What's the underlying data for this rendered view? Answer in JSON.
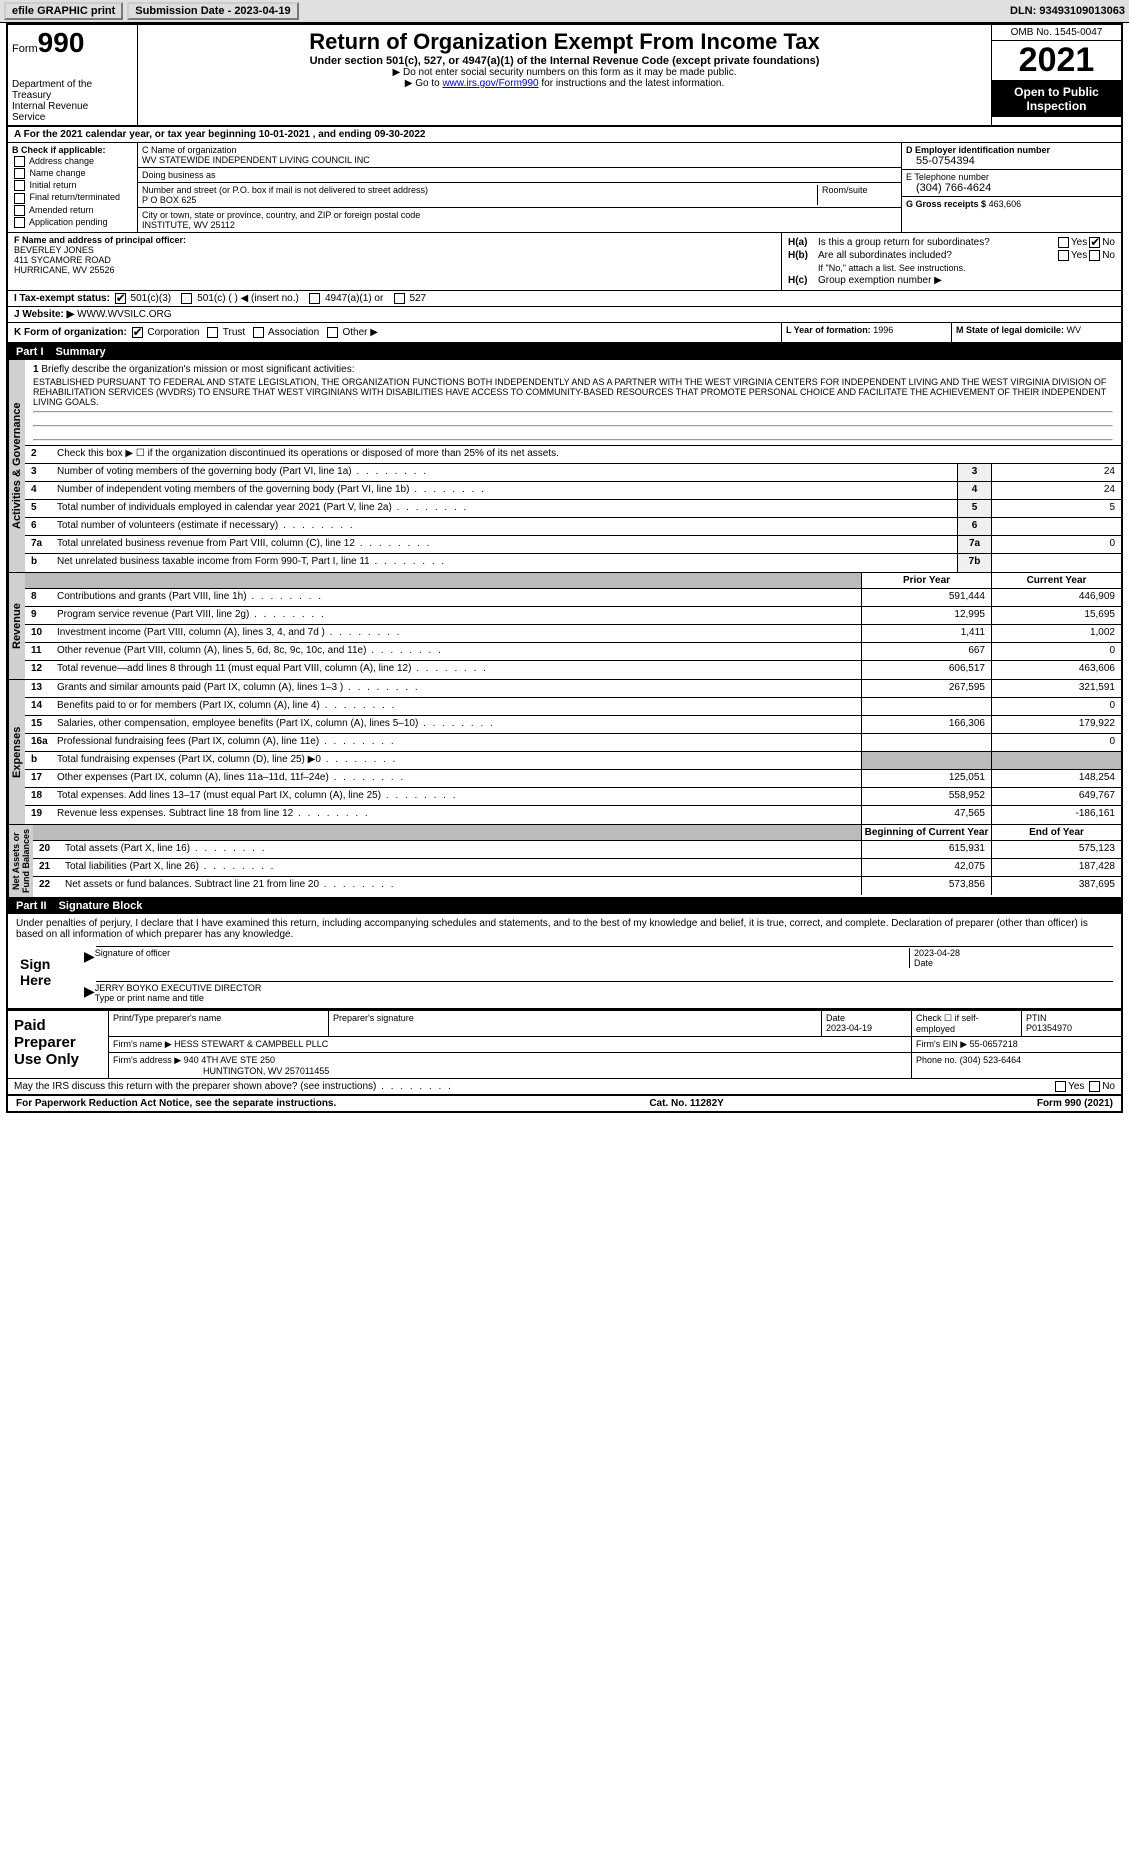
{
  "topbar": {
    "efile": "efile GRAPHIC print",
    "submission_label": "Submission Date - 2023-04-19",
    "dln_label": "DLN: 93493109013063"
  },
  "header": {
    "form_prefix": "Form",
    "form_number": "990",
    "title": "Return of Organization Exempt From Income Tax",
    "subtitle": "Under section 501(c), 527, or 4947(a)(1) of the Internal Revenue Code (except private foundations)",
    "note1": "▶ Do not enter social security numbers on this form as it may be made public.",
    "note2_prefix": "▶ Go to ",
    "note2_link": "www.irs.gov/Form990",
    "note2_suffix": " for instructions and the latest information.",
    "dept": "Department of the\nTreasury\nInternal Revenue\nService",
    "omb": "OMB No. 1545-0047",
    "year": "2021",
    "open": "Open to Public\nInspection"
  },
  "row_a": "A For the 2021 calendar year, or tax year beginning 10-01-2021     , and ending 09-30-2022",
  "section_b": {
    "label": "B Check if applicable:",
    "items": [
      "Address change",
      "Name change",
      "Initial return",
      "Final return/terminated",
      "Amended return",
      "Application pending"
    ]
  },
  "section_c": {
    "name_label": "C Name of organization",
    "name": "WV STATEWIDE INDEPENDENT LIVING COUNCIL INC",
    "dba_label": "Doing business as",
    "dba": "",
    "addr_label": "Number and street (or P.O. box if mail is not delivered to street address)",
    "room_label": "Room/suite",
    "addr": "P O BOX 625",
    "city_label": "City or town, state or province, country, and ZIP or foreign postal code",
    "city": "INSTITUTE, WV  25112"
  },
  "section_d": {
    "ein_label": "D Employer identification number",
    "ein": "55-0754394",
    "phone_label": "E Telephone number",
    "phone": "(304) 766-4624",
    "gross_label": "G Gross receipts $",
    "gross": "463,606"
  },
  "section_f": {
    "label": "F  Name and address of principal officer:",
    "name": "BEVERLEY JONES",
    "addr1": "411 SYCAMORE ROAD",
    "addr2": "HURRICANE, WV  25526"
  },
  "section_h": {
    "ha_label": "H(a)",
    "ha_text": "Is this a group return for subordinates?",
    "hb_label": "H(b)",
    "hb_text": "Are all subordinates included?",
    "hb_note": "If \"No,\" attach a list. See instructions.",
    "hc_label": "H(c)",
    "hc_text": "Group exemption number ▶",
    "yes": "Yes",
    "no": "No"
  },
  "row_i": {
    "label": "I  Tax-exempt status:",
    "opts": [
      "501(c)(3)",
      "501(c) (   ) ◀ (insert no.)",
      "4947(a)(1) or",
      "527"
    ]
  },
  "row_j": {
    "label": "J  Website: ▶",
    "val": "WWW.WVSILC.ORG"
  },
  "row_k": {
    "label": "K Form of organization:",
    "opts": [
      "Corporation",
      "Trust",
      "Association",
      "Other ▶"
    ],
    "l_label": "L Year of formation:",
    "l_val": "1996",
    "m_label": "M State of legal domicile:",
    "m_val": "WV"
  },
  "part1": {
    "num": "Part I",
    "title": "Summary"
  },
  "mission": {
    "num": "1",
    "label": "Briefly describe the organization's mission or most significant activities:",
    "text": "ESTABLISHED PURSUANT TO FEDERAL AND STATE LEGISLATION, THE ORGANIZATION FUNCTIONS BOTH INDEPENDENTLY AND AS A PARTNER WITH THE WEST VIRGINIA CENTERS FOR INDEPENDENT LIVING AND THE WEST VIRGINIA DIVISION OF REHABILITATION SERVICES (WVDRS) TO ENSURE THAT WEST VIRGINIANS WITH DISABILITIES HAVE ACCESS TO COMMUNITY-BASED RESOURCES THAT PROMOTE PERSONAL CHOICE AND FACILITATE THE ACHIEVEMENT OF THEIR INDEPENDENT LIVING GOALS."
  },
  "lines_gov": [
    {
      "num": "2",
      "desc": "Check this box ▶ ☐  if the organization discontinued its operations or disposed of more than 25% of its net assets.",
      "box": "",
      "val": ""
    },
    {
      "num": "3",
      "desc": "Number of voting members of the governing body (Part VI, line 1a)",
      "box": "3",
      "val": "24"
    },
    {
      "num": "4",
      "desc": "Number of independent voting members of the governing body (Part VI, line 1b)",
      "box": "4",
      "val": "24"
    },
    {
      "num": "5",
      "desc": "Total number of individuals employed in calendar year 2021 (Part V, line 2a)",
      "box": "5",
      "val": "5"
    },
    {
      "num": "6",
      "desc": "Total number of volunteers (estimate if necessary)",
      "box": "6",
      "val": ""
    },
    {
      "num": "7a",
      "desc": "Total unrelated business revenue from Part VIII, column (C), line 12",
      "box": "7a",
      "val": "0"
    },
    {
      "num": "b",
      "desc": "Net unrelated business taxable income from Form 990-T, Part I, line 11",
      "box": "7b",
      "val": ""
    }
  ],
  "col_headers": {
    "prior": "Prior Year",
    "current": "Current Year",
    "boy": "Beginning of Current Year",
    "eoy": "End of Year"
  },
  "lines_rev": [
    {
      "num": "8",
      "desc": "Contributions and grants (Part VIII, line 1h)",
      "prior": "591,444",
      "current": "446,909"
    },
    {
      "num": "9",
      "desc": "Program service revenue (Part VIII, line 2g)",
      "prior": "12,995",
      "current": "15,695"
    },
    {
      "num": "10",
      "desc": "Investment income (Part VIII, column (A), lines 3, 4, and 7d )",
      "prior": "1,411",
      "current": "1,002"
    },
    {
      "num": "11",
      "desc": "Other revenue (Part VIII, column (A), lines 5, 6d, 8c, 9c, 10c, and 11e)",
      "prior": "667",
      "current": "0"
    },
    {
      "num": "12",
      "desc": "Total revenue—add lines 8 through 11 (must equal Part VIII, column (A), line 12)",
      "prior": "606,517",
      "current": "463,606"
    }
  ],
  "lines_exp": [
    {
      "num": "13",
      "desc": "Grants and similar amounts paid (Part IX, column (A), lines 1–3 )",
      "prior": "267,595",
      "current": "321,591"
    },
    {
      "num": "14",
      "desc": "Benefits paid to or for members (Part IX, column (A), line 4)",
      "prior": "",
      "current": "0"
    },
    {
      "num": "15",
      "desc": "Salaries, other compensation, employee benefits (Part IX, column (A), lines 5–10)",
      "prior": "166,306",
      "current": "179,922"
    },
    {
      "num": "16a",
      "desc": "Professional fundraising fees (Part IX, column (A), line 11e)",
      "prior": "",
      "current": "0"
    },
    {
      "num": "b",
      "desc": "Total fundraising expenses (Part IX, column (D), line 25) ▶0",
      "prior": "shaded",
      "current": "shaded"
    },
    {
      "num": "17",
      "desc": "Other expenses (Part IX, column (A), lines 11a–11d, 11f–24e)",
      "prior": "125,051",
      "current": "148,254"
    },
    {
      "num": "18",
      "desc": "Total expenses. Add lines 13–17 (must equal Part IX, column (A), line 25)",
      "prior": "558,952",
      "current": "649,767"
    },
    {
      "num": "19",
      "desc": "Revenue less expenses. Subtract line 18 from line 12",
      "prior": "47,565",
      "current": "-186,161"
    }
  ],
  "lines_net": [
    {
      "num": "20",
      "desc": "Total assets (Part X, line 16)",
      "prior": "615,931",
      "current": "575,123"
    },
    {
      "num": "21",
      "desc": "Total liabilities (Part X, line 26)",
      "prior": "42,075",
      "current": "187,428"
    },
    {
      "num": "22",
      "desc": "Net assets or fund balances. Subtract line 21 from line 20",
      "prior": "573,856",
      "current": "387,695"
    }
  ],
  "vert": {
    "gov": "Activities & Governance",
    "rev": "Revenue",
    "exp": "Expenses",
    "net": "Net Assets or\nFund Balances"
  },
  "part2": {
    "num": "Part II",
    "title": "Signature Block"
  },
  "sig": {
    "perjury": "Under penalties of perjury, I declare that I have examined this return, including accompanying schedules and statements, and to the best of my knowledge and belief, it is true, correct, and complete. Declaration of preparer (other than officer) is based on all information of which preparer has any knowledge.",
    "sign_here": "Sign Here",
    "sig_officer": "Signature of officer",
    "date": "Date",
    "date_val": "2023-04-28",
    "name_title": "JERRY BOYKO  EXECUTIVE DIRECTOR",
    "type_label": "Type or print name and title"
  },
  "preparer": {
    "label": "Paid Preparer Use Only",
    "print_label": "Print/Type preparer's name",
    "sig_label": "Preparer's signature",
    "date_label": "Date",
    "date_val": "2023-04-19",
    "check_label": "Check ☐ if self-employed",
    "ptin_label": "PTIN",
    "ptin": "P01354970",
    "firm_name_label": "Firm's name    ▶",
    "firm_name": "HESS STEWART & CAMPBELL PLLC",
    "firm_ein_label": "Firm's EIN ▶",
    "firm_ein": "55-0657218",
    "firm_addr_label": "Firm's address ▶",
    "firm_addr1": "940 4TH AVE STE 250",
    "firm_addr2": "HUNTINGTON, WV  257011455",
    "phone_label": "Phone no.",
    "phone": "(304) 523-6464"
  },
  "footer": {
    "discuss": "May the IRS discuss this return with the preparer shown above? (see instructions)",
    "paperwork": "For Paperwork Reduction Act Notice, see the separate instructions.",
    "cat": "Cat. No. 11282Y",
    "form": "Form 990 (2021)"
  }
}
